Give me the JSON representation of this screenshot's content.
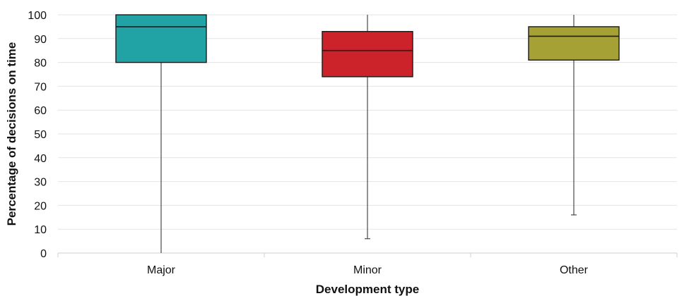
{
  "chart_data": {
    "type": "box",
    "xlabel": "Development type",
    "ylabel": "Percentage of decisions on time",
    "ylim": [
      0,
      100
    ],
    "yticks": [
      0,
      10,
      20,
      30,
      40,
      50,
      60,
      70,
      80,
      90,
      100
    ],
    "grid": true,
    "categories": [
      "Major",
      "Minor",
      "Other"
    ],
    "series": [
      {
        "category": "Major",
        "min": 0,
        "q1": 80,
        "median": 95,
        "q3": 100,
        "max": 100,
        "color": "#21a3a6"
      },
      {
        "category": "Minor",
        "min": 6,
        "q1": 74,
        "median": 85,
        "q3": 93,
        "max": 100,
        "color": "#cc232b"
      },
      {
        "category": "Other",
        "min": 16,
        "q1": 81,
        "median": 91,
        "q3": 95,
        "max": 100,
        "color": "#a5a134"
      }
    ]
  }
}
